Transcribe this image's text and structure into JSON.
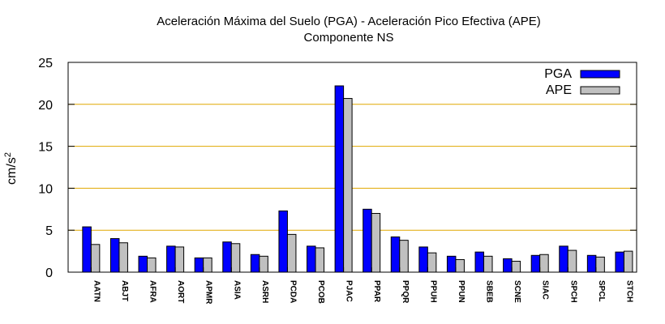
{
  "chart_data": {
    "type": "bar",
    "title_line1": "Aceleración Máxima del Suelo (PGA) -  Aceleración Pico Efectiva (APE)",
    "title_line2": "Componente NS",
    "ylabel_base": "cm/s",
    "ylabel_sup": "2",
    "xlabel": "",
    "ylim": [
      0,
      25
    ],
    "yticks": [
      0,
      5,
      10,
      15,
      20,
      25
    ],
    "grid": "horizontal",
    "legend_position": "top-right",
    "categories": [
      "AATN",
      "ABJT",
      "AFRA",
      "AORT",
      "APMR",
      "ASIA",
      "ASRH",
      "PCDA",
      "PCOB",
      "PJAC",
      "PPAR",
      "PPQR",
      "PPUH",
      "PPUN",
      "SBEB",
      "SCNE",
      "SIAC",
      "SPCH",
      "SPCL",
      "STCH"
    ],
    "series": [
      {
        "name": "PGA",
        "color": "#0000ff",
        "values": [
          5.4,
          4.0,
          1.9,
          3.1,
          1.7,
          3.6,
          2.1,
          7.3,
          3.1,
          22.2,
          7.5,
          4.2,
          3.0,
          1.9,
          2.4,
          1.6,
          2.0,
          3.1,
          2.0,
          2.4
        ]
      },
      {
        "name": "APE",
        "color": "#c0c0c0",
        "values": [
          3.3,
          3.5,
          1.7,
          3.0,
          1.7,
          3.4,
          1.9,
          4.5,
          2.9,
          20.7,
          7.0,
          3.8,
          2.3,
          1.5,
          1.9,
          1.3,
          2.1,
          2.6,
          1.8,
          2.5
        ]
      }
    ],
    "colors": {
      "grid": "#e0a800",
      "axis": "#000000"
    }
  }
}
